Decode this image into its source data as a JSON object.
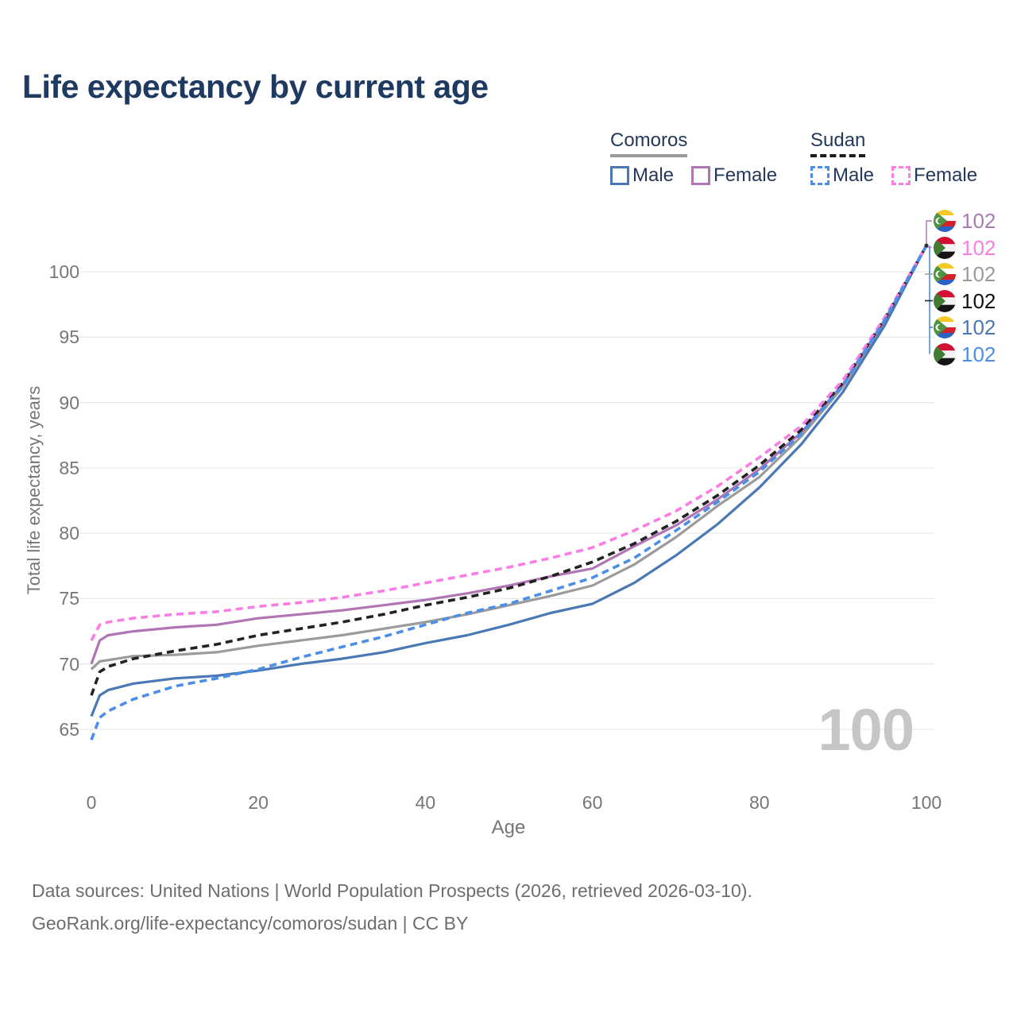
{
  "title": "Life expectancy by current age",
  "legend": {
    "groups": [
      {
        "label": "Comoros",
        "line_style": "solid",
        "underline_color": "#9a9a9a",
        "items": [
          {
            "label": "Male",
            "color": "#4a78b5",
            "style": "solid"
          },
          {
            "label": "Female",
            "color": "#b175b3",
            "style": "solid"
          }
        ]
      },
      {
        "label": "Sudan",
        "line_style": "dashed",
        "underline_color": "#1c1c1c",
        "items": [
          {
            "label": "Male",
            "color": "#4a8ee8",
            "style": "dashed"
          },
          {
            "label": "Female",
            "color": "#fb7de4",
            "style": "dashed"
          }
        ]
      }
    ]
  },
  "chart_data": {
    "type": "line",
    "title": "Life expectancy by current age",
    "xlabel": "Age",
    "ylabel": "Total life expectancy, years",
    "watermark": "100",
    "xlim": [
      0,
      100
    ],
    "ylim": [
      63,
      103
    ],
    "x_ticks": [
      0,
      20,
      40,
      60,
      80,
      100
    ],
    "y_ticks": [
      65,
      70,
      75,
      80,
      85,
      90,
      95,
      100
    ],
    "grid": "horizontal-only",
    "x": [
      0,
      1,
      2,
      5,
      10,
      15,
      20,
      25,
      30,
      35,
      40,
      45,
      50,
      55,
      60,
      65,
      70,
      75,
      80,
      85,
      90,
      95,
      100
    ],
    "series": [
      {
        "name": "Comoros Female",
        "country": "Comoros",
        "sex": "Female",
        "color": "#b175b3",
        "style": "solid",
        "values": [
          70.0,
          71.8,
          72.2,
          72.5,
          72.8,
          73.0,
          73.5,
          73.8,
          74.1,
          74.5,
          74.9,
          75.4,
          76.0,
          76.7,
          77.3,
          79.0,
          80.6,
          82.6,
          84.9,
          87.7,
          91.4,
          96.3,
          102
        ]
      },
      {
        "name": "Sudan Female",
        "country": "Sudan",
        "sex": "Female",
        "color": "#fb7de4",
        "style": "dashed",
        "values": [
          71.8,
          73.0,
          73.2,
          73.5,
          73.8,
          74.0,
          74.4,
          74.7,
          75.1,
          75.6,
          76.2,
          76.8,
          77.4,
          78.1,
          78.9,
          80.2,
          81.7,
          83.6,
          85.8,
          88.2,
          91.7,
          96.5,
          102
        ]
      },
      {
        "name": "Comoros",
        "country": "Comoros",
        "sex": "Both",
        "color": "#9b9b9b",
        "style": "solid",
        "values": [
          69.6,
          70.2,
          70.3,
          70.6,
          70.7,
          70.9,
          71.4,
          71.8,
          72.2,
          72.7,
          73.2,
          73.8,
          74.5,
          75.2,
          76.0,
          77.6,
          79.7,
          82.1,
          84.3,
          87.4,
          91.2,
          96.2,
          102
        ]
      },
      {
        "name": "Sudan",
        "country": "Sudan",
        "sex": "Both",
        "color": "#222222",
        "style": "dashed",
        "values": [
          67.6,
          69.4,
          69.8,
          70.4,
          71.0,
          71.5,
          72.2,
          72.7,
          73.2,
          73.8,
          74.5,
          75.1,
          75.8,
          76.7,
          77.8,
          79.2,
          80.9,
          82.9,
          85.2,
          87.9,
          91.5,
          96.4,
          102
        ]
      },
      {
        "name": "Comoros Male",
        "country": "Comoros",
        "sex": "Male",
        "color": "#4a78b5",
        "style": "solid",
        "values": [
          66.0,
          67.6,
          68.0,
          68.5,
          68.9,
          69.1,
          69.5,
          70.0,
          70.4,
          70.9,
          71.6,
          72.2,
          73.0,
          73.9,
          74.6,
          76.2,
          78.3,
          80.7,
          83.5,
          86.8,
          90.8,
          95.9,
          102
        ]
      },
      {
        "name": "Sudan Male",
        "country": "Sudan",
        "sex": "Male",
        "color": "#4a8ee8",
        "style": "dashed",
        "values": [
          64.2,
          65.9,
          66.4,
          67.3,
          68.3,
          68.9,
          69.6,
          70.5,
          71.3,
          72.1,
          73.0,
          73.9,
          74.6,
          75.6,
          76.6,
          78.1,
          80.2,
          82.4,
          84.7,
          87.6,
          91.3,
          96.3,
          102
        ]
      }
    ],
    "end_labels": [
      {
        "series": "Comoros Female",
        "flag": "comoros",
        "value": "102",
        "color": "#a87cb0"
      },
      {
        "series": "Sudan Female",
        "flag": "sudan",
        "value": "102",
        "color": "#fb7de4"
      },
      {
        "series": "Comoros",
        "flag": "comoros",
        "value": "102",
        "color": "#9b9b9b"
      },
      {
        "series": "Sudan",
        "flag": "sudan",
        "value": "102",
        "color": "#111111"
      },
      {
        "series": "Comoros Male",
        "flag": "comoros",
        "value": "102",
        "color": "#4a78b5"
      },
      {
        "series": "Sudan Male",
        "flag": "sudan",
        "value": "102",
        "color": "#4a8ee8"
      }
    ]
  },
  "footer": {
    "line1": "Data sources: United Nations | World Population Prospects (2026, retrieved 2026-03-10).",
    "line2": "GeoRank.org/life-expectancy/comoros/sudan | CC BY"
  }
}
